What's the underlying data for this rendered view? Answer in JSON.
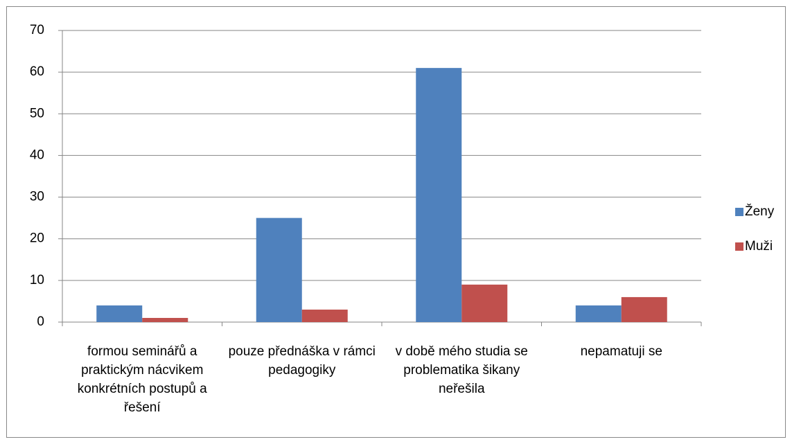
{
  "chart_data": {
    "type": "bar",
    "categories": [
      "formou seminářů a praktickým nácvikem konkrétních postupů a řešení",
      "pouze přednáška v rámci pedagogiky",
      "v době mého studia se problematika šikany neřešila",
      "nepamatuji se"
    ],
    "series": [
      {
        "name": "Ženy",
        "color": "#4f81bd",
        "values": [
          4,
          25,
          61,
          4
        ]
      },
      {
        "name": "Muži",
        "color": "#c0504d",
        "values": [
          1,
          3,
          9,
          6
        ]
      }
    ],
    "ylim": [
      0,
      70
    ],
    "yticks": [
      0,
      10,
      20,
      30,
      40,
      50,
      60,
      70
    ],
    "grid": true,
    "legend": "right"
  }
}
